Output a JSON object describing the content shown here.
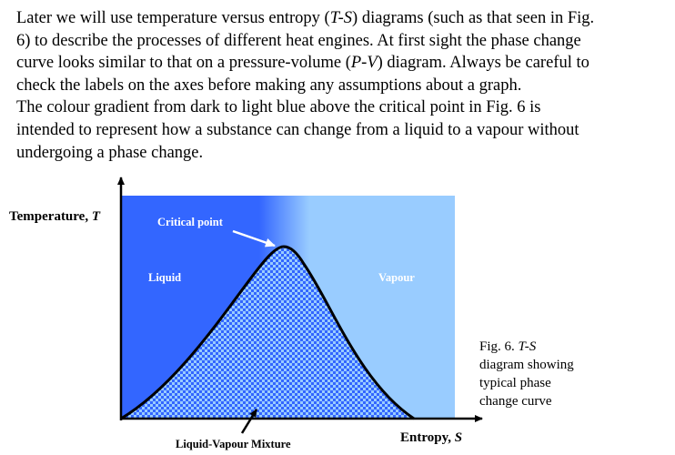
{
  "text": {
    "lines": [
      [
        "Later we will use temperature versus entropy (",
        {
          "italic": "T-S"
        },
        ") diagrams (such as that seen in Fig."
      ],
      [
        "6) to describe the processes of different heat engines. At first sight the phase change"
      ],
      [
        "curve looks similar to that on a pressure-volume (",
        {
          "italic": "P-V"
        },
        ") diagram. Always be careful to"
      ],
      [
        "check the labels on the axes before making any assumptions about a graph."
      ],
      [
        "The colour gradient from dark to light blue above the critical point in Fig. 6 is"
      ],
      [
        "intended to represent how a substance can change from a liquid to a vapour without"
      ],
      [
        "undergoing a phase change."
      ]
    ]
  },
  "figure": {
    "y_axis_label": [
      "Temperature, ",
      {
        "italic": "T"
      }
    ],
    "x_axis_label": [
      "Entropy, ",
      {
        "italic": "S"
      }
    ],
    "critical_point": "Critical point",
    "liquid": "Liquid",
    "vapour": "Vapour",
    "mixture": "Liquid-Vapour Mixture",
    "caption": [
      [
        "Fig. 6. ",
        {
          "italic": "T-S"
        }
      ],
      [
        "diagram showing"
      ],
      [
        "typical phase"
      ],
      [
        "change curve"
      ]
    ]
  }
}
